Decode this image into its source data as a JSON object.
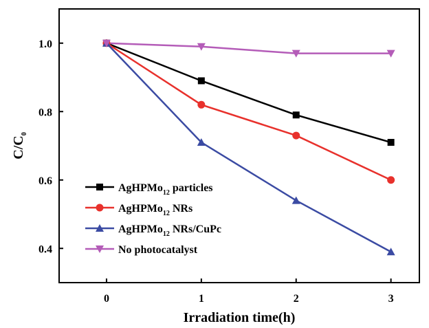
{
  "chart_data": {
    "type": "line",
    "xlabel": "Irradiation time(h)",
    "ylabel": {
      "main": "C/C",
      "sub": "0"
    },
    "x": [
      0,
      1,
      2,
      3
    ],
    "xlim": [
      -0.5,
      3.3
    ],
    "ylim": [
      0.3,
      1.1
    ],
    "xticks": [
      "0",
      "1",
      "2",
      "3"
    ],
    "yticks": [
      "0.4",
      "0.6",
      "0.8",
      "1.0"
    ],
    "grid": false,
    "legend_position": "lower-left",
    "series": [
      {
        "name_pre": "AgHPMo",
        "name_sub": "12",
        "name_post": " particles",
        "color": "#000000",
        "marker": "square",
        "values": [
          1.0,
          0.89,
          0.79,
          0.71
        ]
      },
      {
        "name_pre": "AgHPMo",
        "name_sub": "12",
        "name_post": " NRs",
        "color": "#e8312c",
        "marker": "circle",
        "values": [
          1.0,
          0.82,
          0.73,
          0.6
        ]
      },
      {
        "name_pre": "AgHPMo",
        "name_sub": "12",
        "name_post": " NRs/CuPc",
        "color": "#3b4ba3",
        "marker": "triangle-up",
        "values": [
          1.0,
          0.71,
          0.54,
          0.39
        ]
      },
      {
        "name_pre": "No photocatalyst",
        "name_sub": "",
        "name_post": "",
        "color": "#b45cb8",
        "marker": "triangle-down",
        "values": [
          1.0,
          0.99,
          0.97,
          0.97
        ]
      }
    ]
  }
}
